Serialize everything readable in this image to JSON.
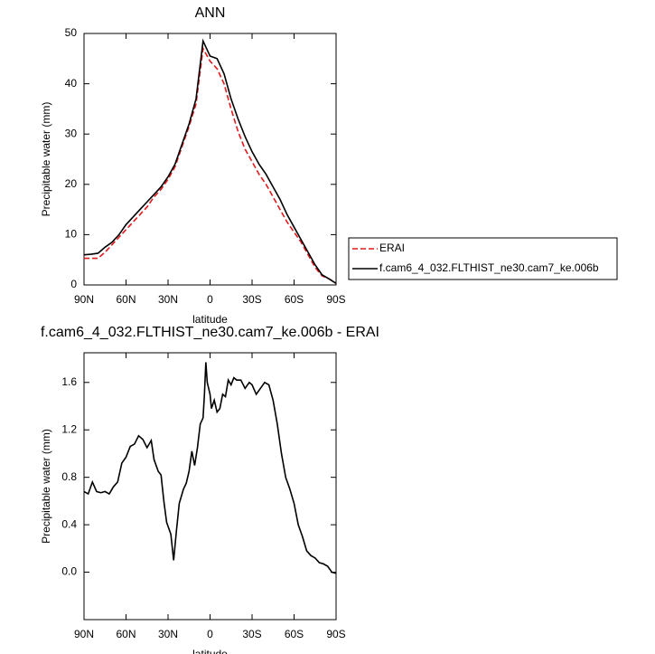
{
  "chart_data": [
    {
      "type": "line",
      "title": "ANN",
      "x_label": "latitude",
      "y_label": "Precipitable water (mm)",
      "x": [
        90,
        85,
        80,
        75,
        70,
        65,
        60,
        55,
        50,
        45,
        40,
        35,
        30,
        25,
        20,
        15,
        10,
        5,
        0,
        -5,
        -10,
        -15,
        -20,
        -25,
        -30,
        -35,
        -40,
        -45,
        -50,
        -55,
        -60,
        -65,
        -70,
        -75,
        -80,
        -85,
        -90
      ],
      "series": [
        {
          "name": "ERAI",
          "color": "#e41a1c",
          "linestyle": "dashed",
          "values": [
            5.3,
            5.3,
            5.3,
            6.5,
            8,
            9.5,
            11,
            12.5,
            14,
            15.5,
            17.5,
            19,
            21,
            23.5,
            27.5,
            31.5,
            36,
            47,
            44.5,
            43,
            40,
            35,
            30.5,
            27,
            24.5,
            22,
            20,
            17.5,
            15,
            12.5,
            10.5,
            8.5,
            6,
            3.5,
            1.8,
            1.2,
            0.3
          ]
        },
        {
          "name": "f.cam6_4_032.FLTHIST_ne30.cam7_ke.006b",
          "color": "#000000",
          "linestyle": "solid",
          "values": [
            6,
            6.1,
            6.3,
            7.5,
            8.5,
            10,
            12,
            13.5,
            15,
            16.5,
            18,
            19.5,
            21.5,
            24,
            28,
            32,
            37,
            48.5,
            45.5,
            45,
            42,
            37,
            33,
            29.5,
            26.5,
            24,
            22,
            19.5,
            17,
            14,
            11.5,
            9,
            6.5,
            4,
            2,
            1.2,
            0.3
          ]
        }
      ],
      "xlim": [
        90,
        -90
      ],
      "xticks": [
        {
          "value": 90,
          "label": "90N"
        },
        {
          "value": 60,
          "label": "60N"
        },
        {
          "value": 30,
          "label": "30N"
        },
        0,
        {
          "value": -30,
          "label": "30S"
        },
        {
          "value": -60,
          "label": "60S"
        },
        {
          "value": -90,
          "label": "90S"
        }
      ],
      "ylim": [
        0,
        50
      ],
      "yticks": [
        0,
        10,
        20,
        30,
        40,
        50
      ],
      "legend": "outside-right"
    },
    {
      "type": "line",
      "title": "f.cam6_4_032.FLTHIST_ne30.cam7_ke.006b - ERAI",
      "x_label": "latitude",
      "y_label": "Precipitable water (mm)",
      "x": [
        90,
        87,
        84,
        81,
        78,
        75,
        72,
        69,
        66,
        63,
        60,
        57,
        54,
        51,
        48,
        45,
        42,
        40,
        37,
        35,
        33,
        31,
        28,
        26,
        24,
        22,
        19,
        17,
        15,
        13,
        11,
        9,
        7,
        5,
        4,
        3,
        2,
        0,
        -1,
        -3,
        -5,
        -7,
        -9,
        -11,
        -13,
        -15,
        -17,
        -19,
        -22,
        -25,
        -28,
        -30,
        -33,
        -36,
        -39,
        -42,
        -45,
        -48,
        -51,
        -54,
        -57,
        -60,
        -63,
        -66,
        -69,
        -72,
        -75,
        -78,
        -81,
        -84,
        -87,
        -90
      ],
      "values": [
        0.68,
        0.66,
        0.76,
        0.68,
        0.67,
        0.68,
        0.66,
        0.72,
        0.76,
        0.92,
        0.97,
        1.06,
        1.08,
        1.15,
        1.12,
        1.05,
        1.11,
        0.95,
        0.85,
        0.82,
        0.6,
        0.42,
        0.32,
        0.1,
        0.35,
        0.58,
        0.7,
        0.75,
        0.85,
        1.02,
        0.9,
        1.05,
        1.25,
        1.3,
        1.5,
        1.77,
        1.6,
        1.5,
        1.38,
        1.45,
        1.35,
        1.38,
        1.5,
        1.48,
        1.62,
        1.58,
        1.64,
        1.62,
        1.62,
        1.55,
        1.6,
        1.58,
        1.5,
        1.55,
        1.6,
        1.58,
        1.45,
        1.25,
        1.0,
        0.8,
        0.7,
        0.58,
        0.4,
        0.3,
        0.18,
        0.14,
        0.12,
        0.08,
        0.07,
        0.05,
        0.0,
        -0.01
      ],
      "color": "#000000",
      "xlim": [
        90,
        -90
      ],
      "xticks": [
        {
          "value": 90,
          "label": "90N"
        },
        {
          "value": 60,
          "label": "60N"
        },
        {
          "value": 30,
          "label": "30N"
        },
        0,
        {
          "value": -30,
          "label": "30S"
        },
        {
          "value": -60,
          "label": "60S"
        },
        {
          "value": -90,
          "label": "90S"
        }
      ],
      "ylim": [
        -0.4,
        1.85
      ],
      "yticks": [
        {
          "value": 0,
          "label": "0.0"
        },
        0.4,
        0.8,
        1.2,
        1.6
      ]
    }
  ]
}
